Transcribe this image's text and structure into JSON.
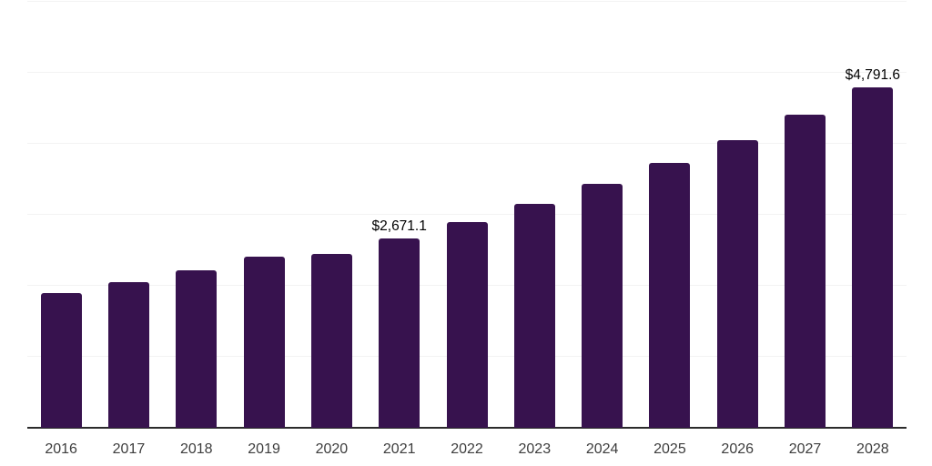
{
  "chart_data": {
    "type": "bar",
    "title": "",
    "xlabel": "",
    "ylabel": "",
    "categories": [
      "2016",
      "2017",
      "2018",
      "2019",
      "2020",
      "2021",
      "2022",
      "2023",
      "2024",
      "2025",
      "2026",
      "2027",
      "2028"
    ],
    "values": [
      1900,
      2050,
      2220,
      2410,
      2455,
      2671.1,
      2903.7,
      3156.5,
      3431.3,
      3730.1,
      4054.9,
      4407.9,
      4791.6
    ],
    "point_labels": [
      "",
      "",
      "",
      "",
      "",
      "$2,671.1",
      "",
      "",
      "",
      "",
      "",
      "",
      "$4,791.6"
    ],
    "ylim": [
      0,
      6000
    ],
    "gridline_step": 1000,
    "grid": true,
    "y_tick_labels_visible": false,
    "legend": "none",
    "colors": {
      "bar": "#37124E",
      "gridline": "#f3f3f3",
      "axis_line": "#2b2b2b",
      "value_label": "#000000",
      "tick_label": "#3d3d3d",
      "background": "#ffffff"
    }
  }
}
